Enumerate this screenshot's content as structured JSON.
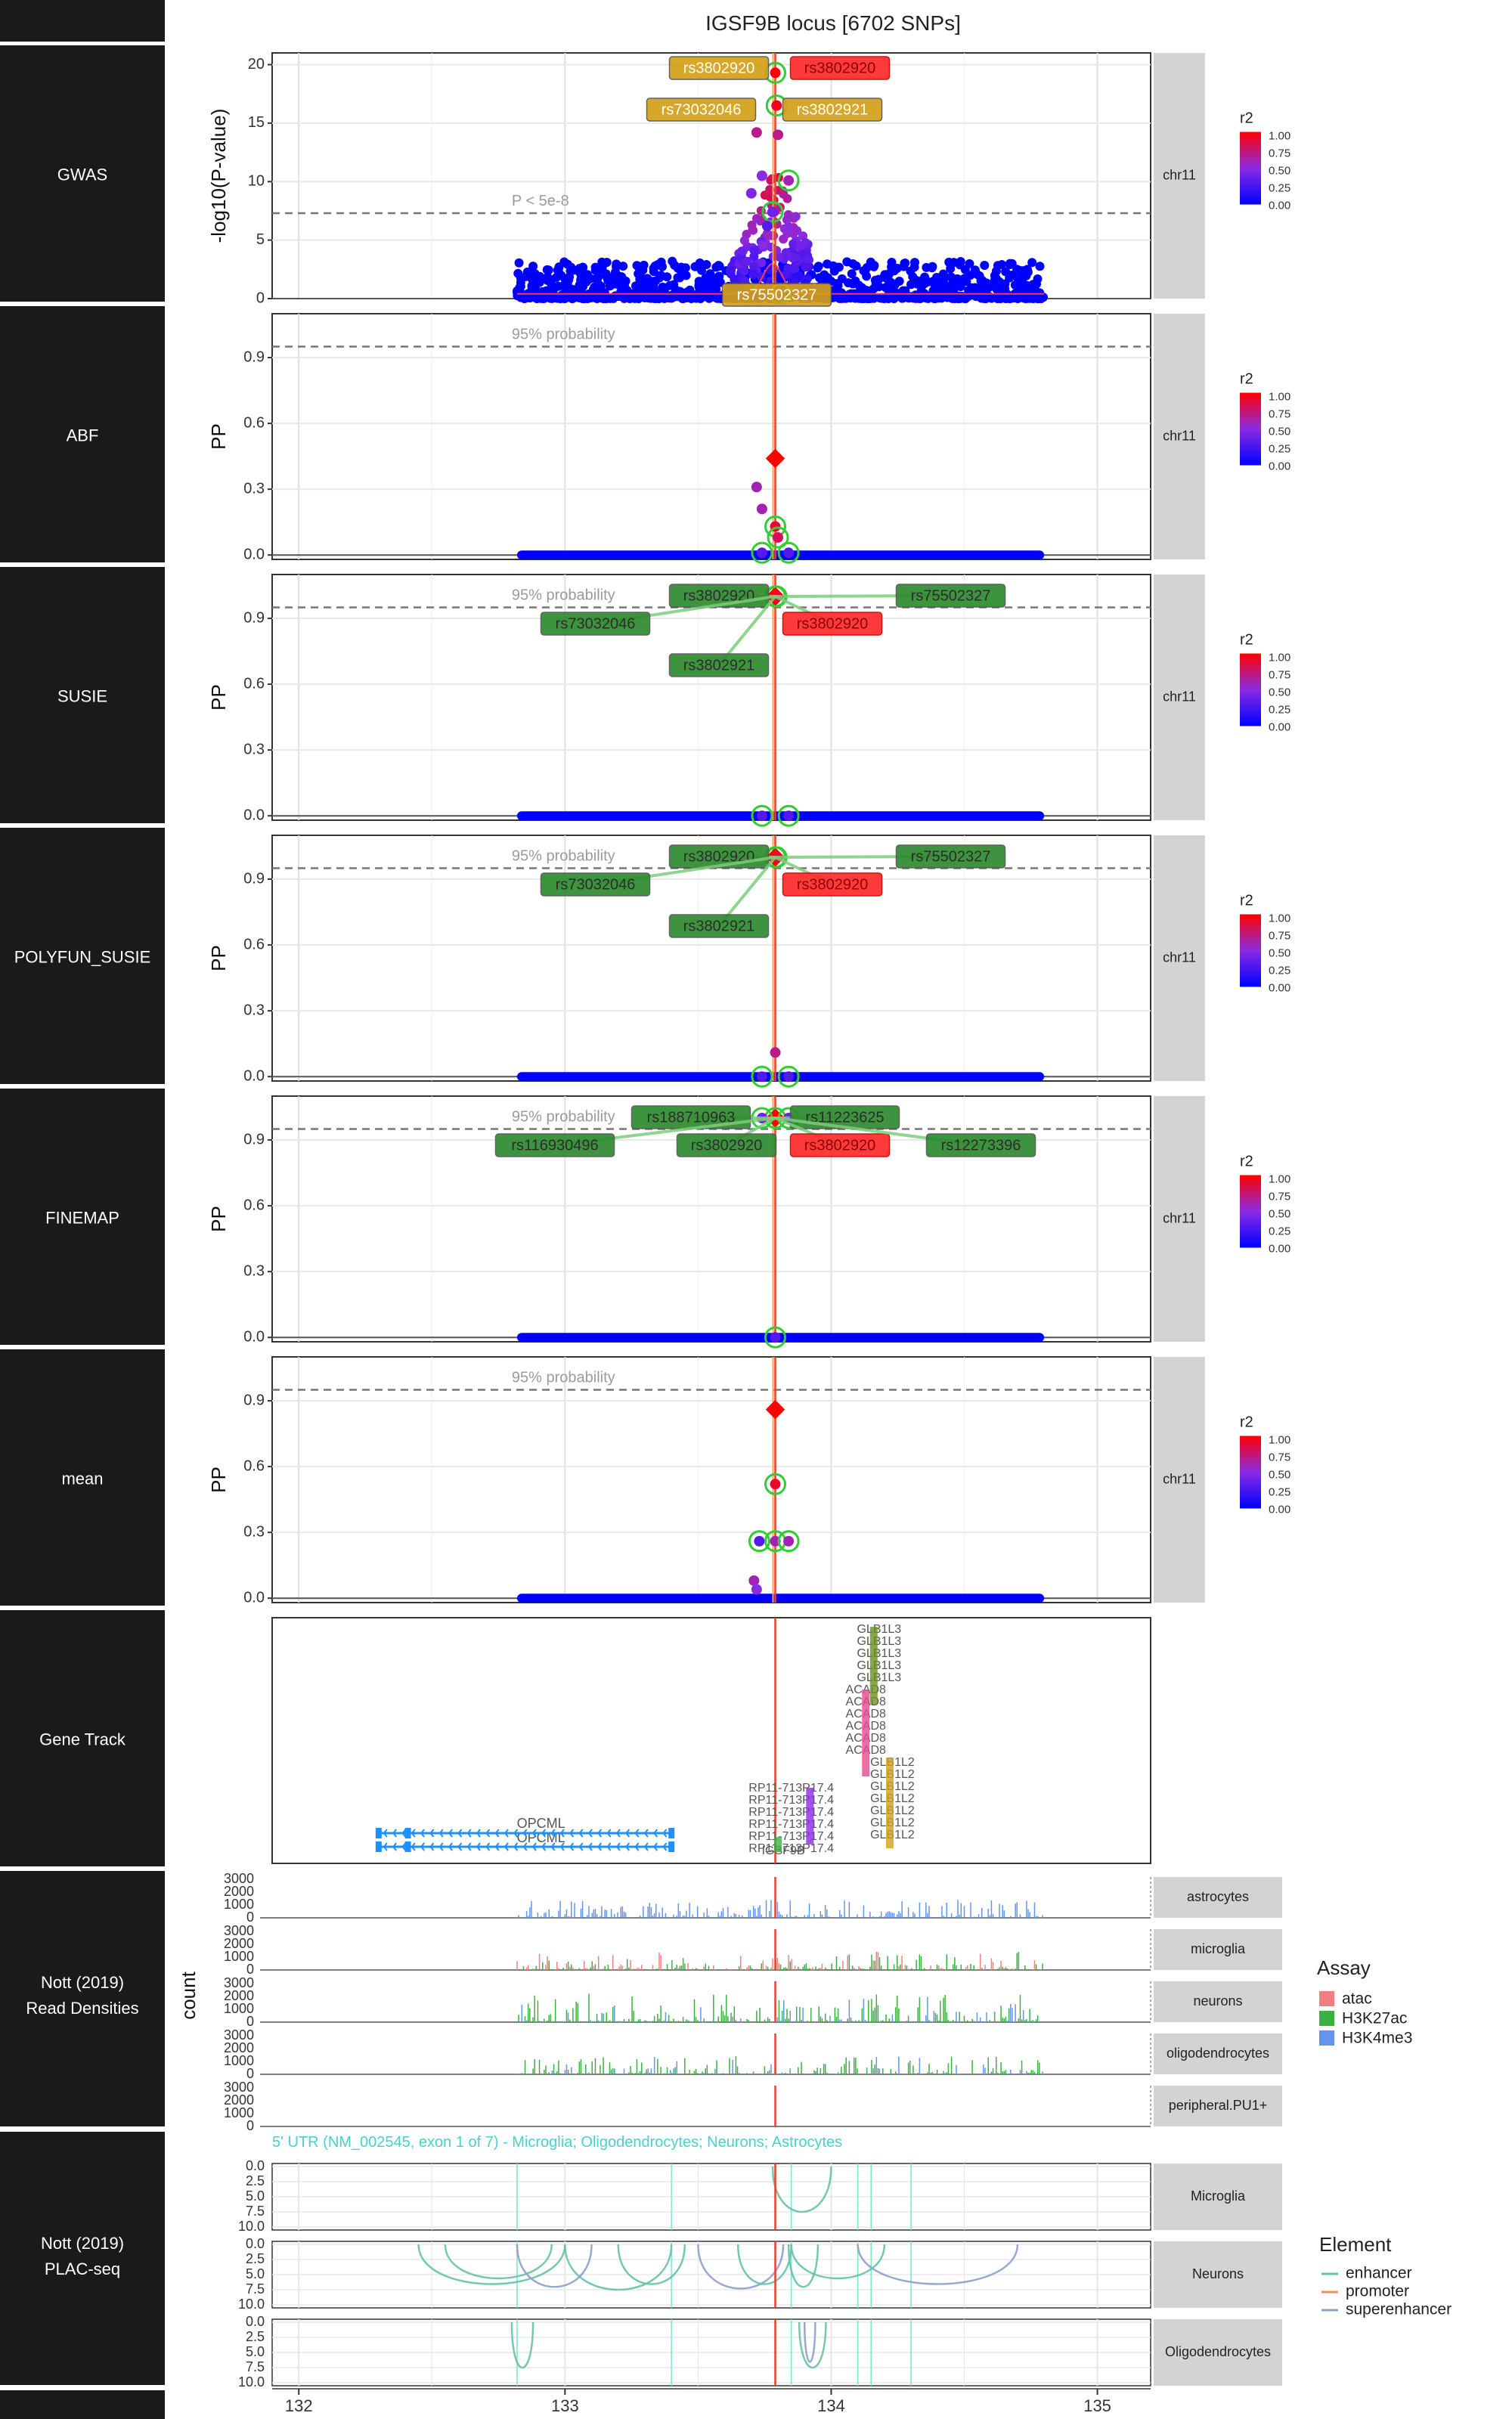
{
  "title": "IGSF9B locus [6702 SNPs]",
  "colors": {
    "strip_bg": "#1a1a1a",
    "facet_bg": "#d3d3d3",
    "panel_grid": "#ebebeb",
    "lead_line": "#e8402a",
    "ci_line": "#f4a460",
    "gwas_curve": "#ff3366",
    "low_r2": "#0000ff",
    "high_r2": "#ff0000",
    "mid_r2": "#8a2be2",
    "credible_ring": "#32cd32",
    "label_fill_gwas": "#d4a017",
    "label_fill_fm": "#2e8b2e",
    "label_fill_lead": "#ff2a2a"
  },
  "x_axis": {
    "label": "",
    "ticks": [
      "132",
      "133",
      "134",
      "135"
    ]
  },
  "legend_r2": {
    "title": "r2",
    "ticks": [
      "1.00",
      "0.75",
      "0.50",
      "0.25",
      "0.00"
    ]
  },
  "chart_data": [
    {
      "type": "scatter",
      "panel": "GWAS",
      "title": "GWAS",
      "ylabel": "-log10(P-value)",
      "ylim": [
        0,
        21
      ],
      "yticks": [
        0,
        5,
        10,
        15,
        20
      ],
      "facet": "chr11",
      "threshold": {
        "value": 7.3,
        "label": "P < 5e-8"
      },
      "lead_snp_position": 133.79,
      "points": [
        {
          "x": 133.79,
          "y": 19.3,
          "r2": 1.0,
          "credible": true
        },
        {
          "x": 133.795,
          "y": 16.5,
          "r2": 0.95,
          "credible": true
        },
        {
          "x": 133.72,
          "y": 14.2,
          "r2": 0.7,
          "credible": false
        },
        {
          "x": 133.8,
          "y": 14.0,
          "r2": 0.7,
          "credible": false
        },
        {
          "x": 133.84,
          "y": 10.1,
          "r2": 0.6,
          "credible": true
        },
        {
          "x": 133.74,
          "y": 10.5,
          "r2": 0.5,
          "credible": false
        },
        {
          "x": 133.7,
          "y": 9.0,
          "r2": 0.45,
          "credible": false
        },
        {
          "x": 133.78,
          "y": 7.4,
          "r2": 0.4,
          "credible": true
        },
        {
          "x": 133.76,
          "y": 6.2,
          "r2": 0.3,
          "credible": false
        },
        {
          "x": 133.81,
          "y": 0.4,
          "r2": 0.2,
          "credible": true
        }
      ],
      "labels": [
        {
          "text": "rs3802920",
          "style": "gwas"
        },
        {
          "text": "rs3802920",
          "style": "lead"
        },
        {
          "text": "rs73032046",
          "style": "gwas"
        },
        {
          "text": "rs3802921",
          "style": "gwas"
        },
        {
          "text": "rs75502327",
          "style": "gwas"
        }
      ]
    },
    {
      "type": "scatter",
      "panel": "ABF",
      "title": "ABF",
      "ylabel": "PP",
      "ylim": [
        -0.02,
        1.1
      ],
      "yticks": [
        "0.0",
        "0.3",
        "0.6",
        "0.9"
      ],
      "facet": "chr11",
      "threshold": {
        "value": 0.95,
        "label": "95% probability"
      },
      "points": [
        {
          "x": 133.79,
          "y": 0.44,
          "r2": 1.0,
          "credible": false,
          "lead": true
        },
        {
          "x": 133.79,
          "y": 0.13,
          "r2": 0.9,
          "credible": true
        },
        {
          "x": 133.72,
          "y": 0.31,
          "r2": 0.6,
          "credible": false
        },
        {
          "x": 133.74,
          "y": 0.21,
          "r2": 0.6,
          "credible": false
        },
        {
          "x": 133.8,
          "y": 0.08,
          "r2": 0.8,
          "credible": true
        },
        {
          "x": 133.74,
          "y": 0.01,
          "r2": 0.3,
          "credible": true
        },
        {
          "x": 133.84,
          "y": 0.01,
          "r2": 0.3,
          "credible": true
        }
      ],
      "labels": []
    },
    {
      "type": "scatter",
      "panel": "SUSIE",
      "title": "SUSIE",
      "ylabel": "PP",
      "ylim": [
        -0.02,
        1.1
      ],
      "yticks": [
        "0.0",
        "0.3",
        "0.6",
        "0.9"
      ],
      "facet": "chr11",
      "threshold": {
        "value": 0.95,
        "label": "95% probability"
      },
      "points": [
        {
          "x": 133.79,
          "y": 1.0,
          "r2": 1.0,
          "credible": true,
          "lead": true
        },
        {
          "x": 133.795,
          "y": 1.0,
          "r2": 0.9,
          "credible": true
        },
        {
          "x": 133.74,
          "y": 0.0,
          "r2": 0.3,
          "credible": true
        },
        {
          "x": 133.84,
          "y": 0.0,
          "r2": 0.3,
          "credible": true
        }
      ],
      "labels": [
        {
          "text": "rs3802920",
          "style": "fm"
        },
        {
          "text": "rs75502327",
          "style": "fm"
        },
        {
          "text": "rs73032046",
          "style": "fm"
        },
        {
          "text": "rs3802920",
          "style": "lead"
        },
        {
          "text": "rs3802921",
          "style": "fm"
        }
      ]
    },
    {
      "type": "scatter",
      "panel": "POLYFUN_SUSIE",
      "title": "POLYFUN_SUSIE",
      "ylabel": "PP",
      "ylim": [
        -0.02,
        1.1
      ],
      "yticks": [
        "0.0",
        "0.3",
        "0.6",
        "0.9"
      ],
      "facet": "chr11",
      "threshold": {
        "value": 0.95,
        "label": "95% probability"
      },
      "points": [
        {
          "x": 133.79,
          "y": 1.0,
          "r2": 1.0,
          "credible": true,
          "lead": true
        },
        {
          "x": 133.795,
          "y": 1.0,
          "r2": 0.9,
          "credible": true
        },
        {
          "x": 133.79,
          "y": 0.11,
          "r2": 0.7,
          "credible": false
        },
        {
          "x": 133.74,
          "y": 0.0,
          "r2": 0.3,
          "credible": true
        },
        {
          "x": 133.84,
          "y": 0.0,
          "r2": 0.3,
          "credible": true
        }
      ],
      "labels": [
        {
          "text": "rs3802920",
          "style": "fm"
        },
        {
          "text": "rs75502327",
          "style": "fm"
        },
        {
          "text": "rs73032046",
          "style": "fm"
        },
        {
          "text": "rs3802920",
          "style": "lead"
        },
        {
          "text": "rs3802921",
          "style": "fm"
        }
      ]
    },
    {
      "type": "scatter",
      "panel": "FINEMAP",
      "title": "FINEMAP",
      "ylabel": "PP",
      "ylim": [
        -0.02,
        1.1
      ],
      "yticks": [
        "0.0",
        "0.3",
        "0.6",
        "0.9"
      ],
      "facet": "chr11",
      "threshold": {
        "value": 0.95,
        "label": "95% probability"
      },
      "points": [
        {
          "x": 133.79,
          "y": 1.0,
          "r2": 1.0,
          "credible": true,
          "lead": true
        },
        {
          "x": 133.74,
          "y": 1.0,
          "r2": 0.4,
          "credible": true
        },
        {
          "x": 133.84,
          "y": 1.0,
          "r2": 0.4,
          "credible": true
        },
        {
          "x": 133.79,
          "y": 0.0,
          "r2": 0.3,
          "credible": true
        }
      ],
      "labels": [
        {
          "text": "rs188710963",
          "style": "fm"
        },
        {
          "text": "rs11223625",
          "style": "fm"
        },
        {
          "text": "rs116930496",
          "style": "fm"
        },
        {
          "text": "rs3802920",
          "style": "fm"
        },
        {
          "text": "rs3802920",
          "style": "lead"
        },
        {
          "text": "rs12273396",
          "style": "fm"
        }
      ]
    },
    {
      "type": "scatter",
      "panel": "mean",
      "title": "mean",
      "ylabel": "PP",
      "ylim": [
        -0.02,
        1.1
      ],
      "yticks": [
        "0.0",
        "0.3",
        "0.6",
        "0.9"
      ],
      "facet": "chr11",
      "threshold": {
        "value": 0.95,
        "label": "95% probability"
      },
      "points": [
        {
          "x": 133.79,
          "y": 0.86,
          "r2": 1.0,
          "credible": false,
          "lead": true
        },
        {
          "x": 133.79,
          "y": 0.52,
          "r2": 0.9,
          "credible": true
        },
        {
          "x": 133.73,
          "y": 0.26,
          "r2": 0.3,
          "credible": true
        },
        {
          "x": 133.79,
          "y": 0.26,
          "r2": 0.6,
          "credible": true
        },
        {
          "x": 133.84,
          "y": 0.26,
          "r2": 0.6,
          "credible": true
        },
        {
          "x": 133.71,
          "y": 0.08,
          "r2": 0.6,
          "credible": false
        },
        {
          "x": 133.72,
          "y": 0.04,
          "r2": 0.5,
          "credible": false
        }
      ],
      "labels": []
    }
  ],
  "gene_track": {
    "title": "Gene Track",
    "opcml": {
      "labels": [
        "OPCML",
        "OPCML"
      ],
      "color": "#1e90ff"
    },
    "cluster_labels": [
      "GLB1L3",
      "GLB1L3",
      "GLB1L3",
      "GLB1L3",
      "GLB1L3",
      "ACAD8",
      "ACAD8",
      "ACAD8",
      "ACAD8",
      "ACAD8",
      "ACAD8",
      "GLB1L2",
      "GLB1L2",
      "GLB1L2",
      "GLB1L2",
      "GLB1L2",
      "GLB1L2",
      "GLB1L2",
      "RP11-713P17.4",
      "RP11-713P17.4",
      "RP11-713P17.4",
      "RP11-713P17.4",
      "RP11-713P17.4",
      "RP11-713P17.4",
      "IGSF9B"
    ]
  },
  "read_densities": {
    "title_lines": [
      "Nott (2019)",
      "Read Densities"
    ],
    "ylabel": "count",
    "yticks": [
      "0",
      "1000",
      "2000",
      "3000"
    ],
    "cell_types": [
      "astrocytes",
      "microglia",
      "neurons",
      "oligodendrocytes",
      "peripheral.PU1+"
    ],
    "legend_title": "Assay",
    "assays": [
      {
        "name": "atac",
        "color": "#f08080"
      },
      {
        "name": "H3K27ac",
        "color": "#3cb043"
      },
      {
        "name": "H3K4me3",
        "color": "#6495ed"
      }
    ]
  },
  "plac_seq": {
    "title_lines": [
      "Nott (2019)",
      "PLAC-seq"
    ],
    "annotation": "5' UTR (NM_002545, exon 1 of 7) - Microglia; Oligodendrocytes; Neurons; Astrocytes",
    "yticks": [
      "0.0",
      "2.5",
      "5.0",
      "7.5",
      "10.0"
    ],
    "cell_types": [
      "Microglia",
      "Neurons",
      "Oligodendrocytes"
    ],
    "legend_title": "Element",
    "elements": [
      {
        "name": "enhancer",
        "color": "#66c2a5"
      },
      {
        "name": "promoter",
        "color": "#fc8d62"
      },
      {
        "name": "superenhancer",
        "color": "#8da0cb"
      }
    ]
  },
  "strip_labels": [
    "GWAS",
    "ABF",
    "SUSIE",
    "POLYFUN_SUSIE",
    "FINEMAP",
    "mean",
    "Gene Track"
  ]
}
